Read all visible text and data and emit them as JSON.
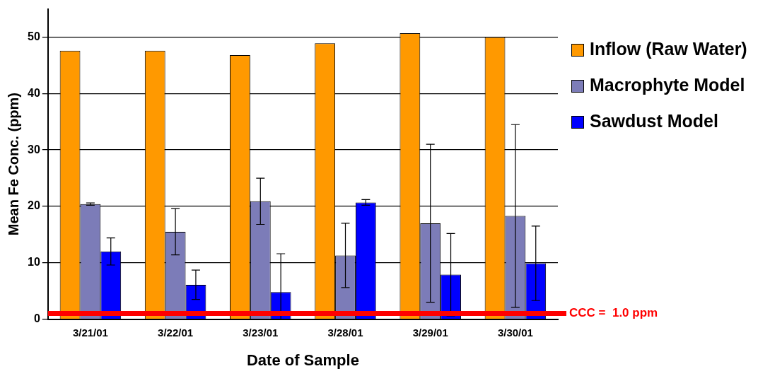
{
  "chart_data": {
    "type": "bar",
    "xlabel": "Date of Sample",
    "ylabel": "Mean Fe Conc. (ppm)",
    "categories": [
      "3/21/01",
      "3/22/01",
      "3/23/01",
      "3/28/01",
      "3/29/01",
      "3/30/01"
    ],
    "series": [
      {
        "name": "Inflow (Raw Water)",
        "color": "#ff9900",
        "values": [
          47.6,
          47.6,
          46.8,
          48.9,
          50.7,
          50.0
        ]
      },
      {
        "name": "Macrophyte Model",
        "color": "#7c7cb8",
        "values": [
          20.4,
          15.5,
          20.9,
          11.3,
          17.0,
          18.3
        ],
        "errors": [
          0.2,
          4.1,
          4.1,
          5.7,
          14.0,
          16.2
        ]
      },
      {
        "name": "Sawdust Model",
        "color": "#0000ff",
        "values": [
          12.0,
          6.1,
          4.8,
          20.7,
          7.9,
          9.9
        ],
        "errors": [
          2.4,
          2.6,
          [
            0,
            11.6
          ],
          0.5,
          7.3,
          6.6
        ]
      }
    ],
    "ylim": [
      0,
      55
    ],
    "yticks": [
      0,
      10,
      20,
      30,
      40,
      50
    ],
    "grid": "y",
    "legend": "right",
    "ref_lines": [
      {
        "axis": "y",
        "value": 1.0,
        "label": "CCC =  1.0 ppm",
        "color": "#ff0000"
      }
    ]
  }
}
